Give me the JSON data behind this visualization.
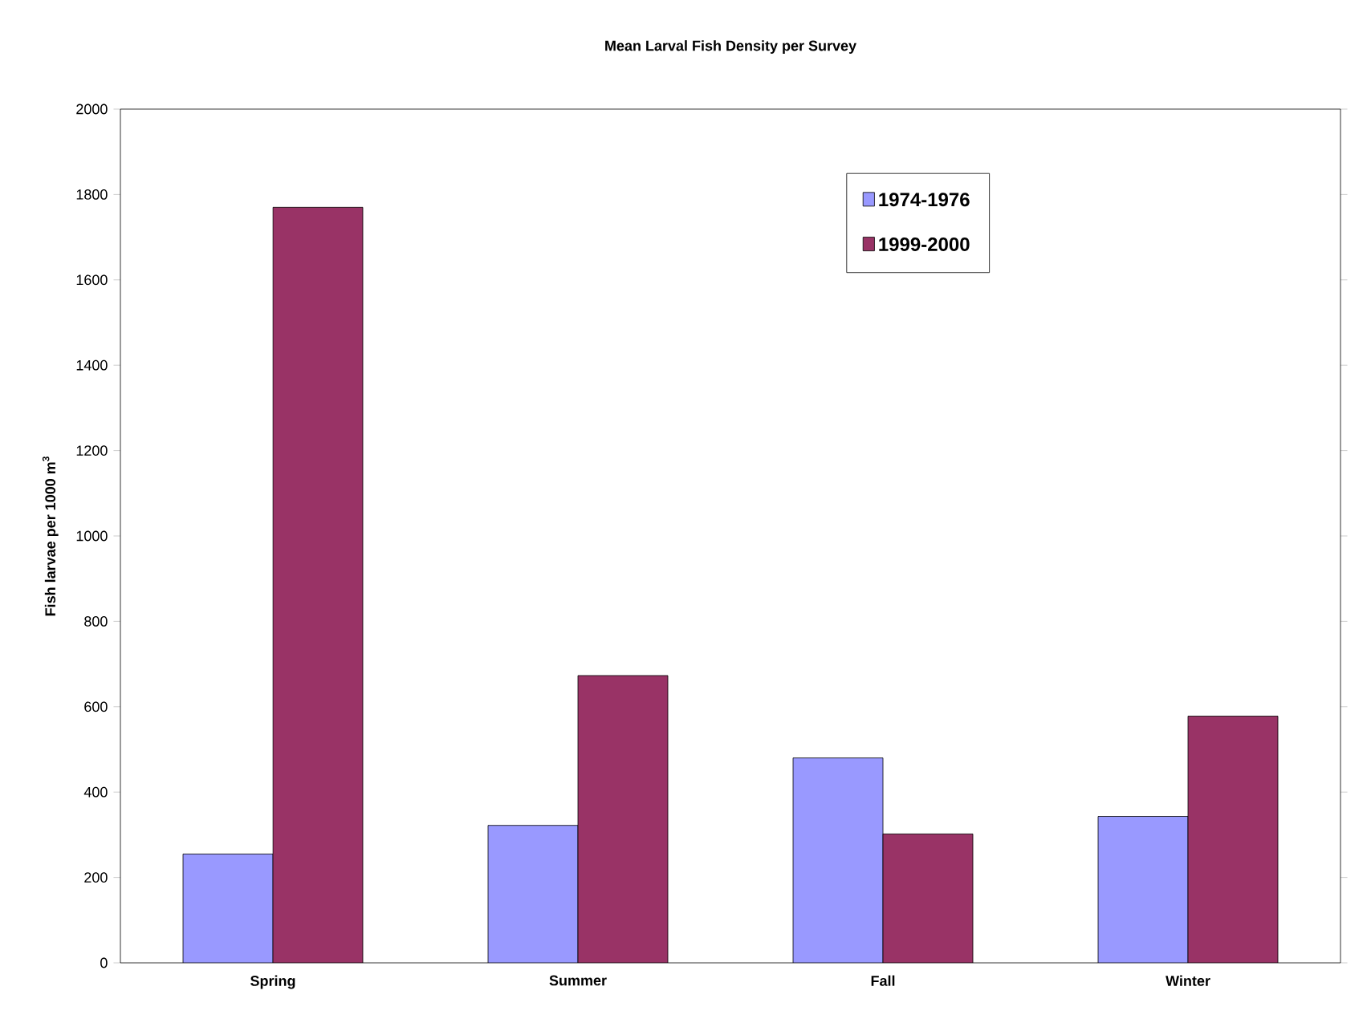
{
  "chart_data": {
    "type": "bar",
    "title": "Mean Larval Fish Density per Survey",
    "ylabel": "Fish larvae per 1000 m$^{3}$",
    "categories": [
      "Spring",
      "Summer",
      "Fall",
      "Winter"
    ],
    "series": [
      {
        "name": "1974-1976",
        "color": "#9999ff",
        "values": [
          255,
          322,
          480,
          343
        ]
      },
      {
        "name": "1999-2000",
        "color": "#993366",
        "values": [
          1770,
          673,
          302,
          578
        ]
      }
    ],
    "ylim": [
      0,
      2000
    ],
    "yticks": [
      0,
      200,
      400,
      600,
      800,
      1000,
      1200,
      1400,
      1600,
      1800,
      2000
    ],
    "grid": false,
    "legend": "top right"
  }
}
